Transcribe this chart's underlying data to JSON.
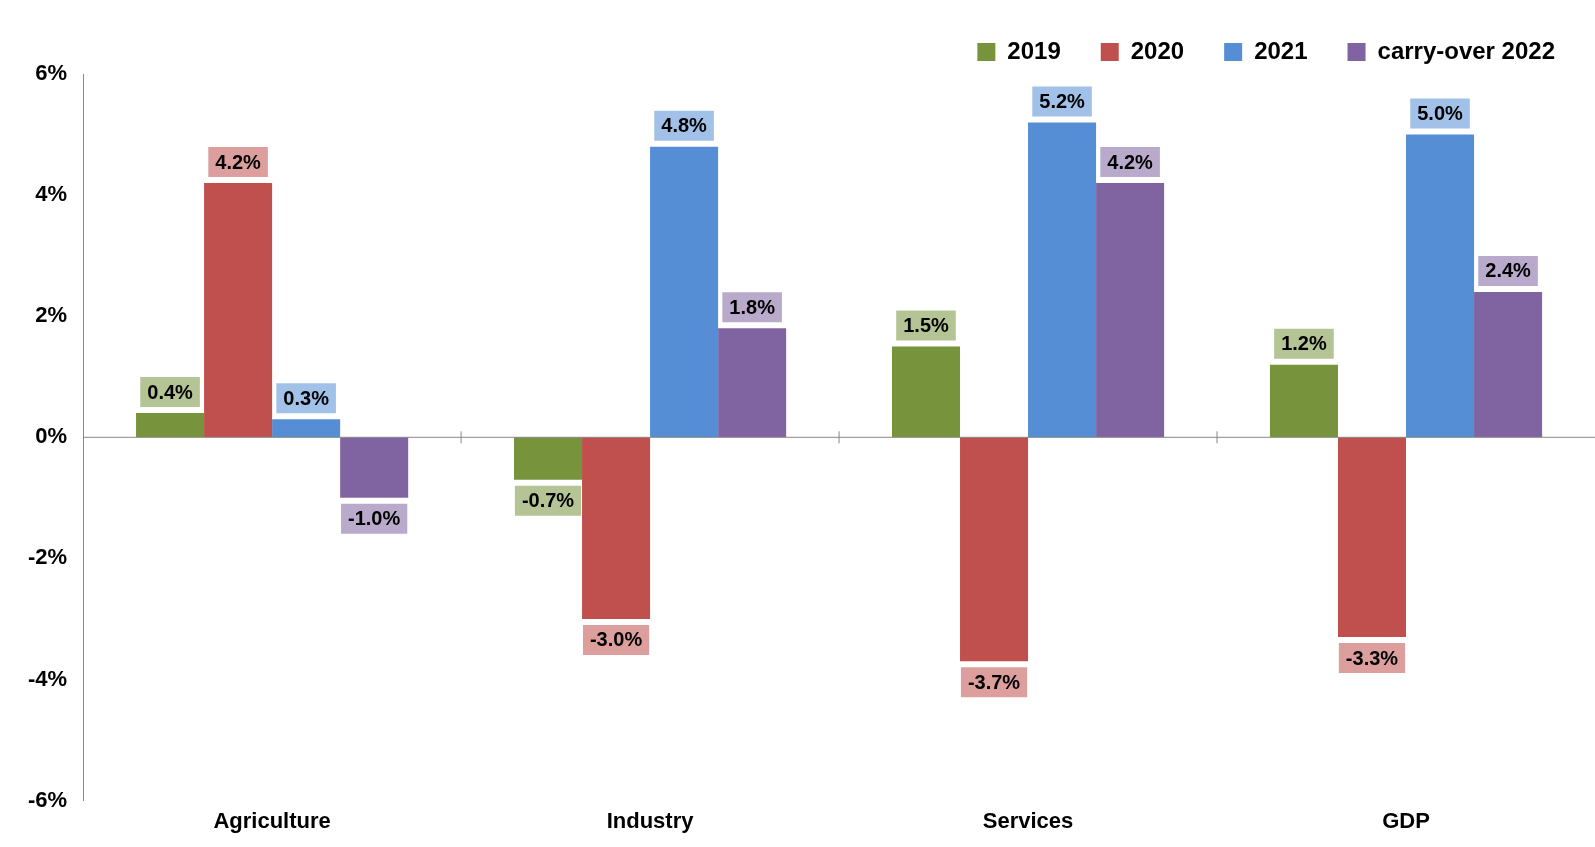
{
  "chart_data": {
    "type": "bar",
    "categories": [
      "Agriculture",
      "Industry",
      "Services",
      "GDP"
    ],
    "series": [
      {
        "name": "2019",
        "color": "#77933c",
        "values": [
          0.4,
          -0.7,
          1.5,
          1.2
        ],
        "value_labels": [
          "0.4%",
          "-0.7%",
          "1.5%",
          "1.2%"
        ]
      },
      {
        "name": "2020",
        "color": "#c0504d",
        "values": [
          4.2,
          -3.0,
          -3.7,
          -3.3
        ],
        "value_labels": [
          "4.2%",
          "-3.0%",
          "-3.7%",
          "-3.3%"
        ]
      },
      {
        "name": "2021",
        "color": "#558ed5",
        "values": [
          0.3,
          4.8,
          5.2,
          5.0
        ],
        "value_labels": [
          "0.3%",
          "4.8%",
          "5.2%",
          "5.0%"
        ]
      },
      {
        "name": "carry-over 2022",
        "color": "#8064a2",
        "values": [
          -1.0,
          1.8,
          4.2,
          2.4
        ],
        "value_labels": [
          "-1.0%",
          "1.8%",
          "4.2%",
          "2.4%"
        ]
      }
    ],
    "ylim": [
      -6,
      6
    ],
    "yticks": [
      {
        "value": -6,
        "label": "-6%"
      },
      {
        "value": -4,
        "label": "-4%"
      },
      {
        "value": -2,
        "label": "-2%"
      },
      {
        "value": 0,
        "label": "0%"
      },
      {
        "value": 2,
        "label": "2%"
      },
      {
        "value": 4,
        "label": "4%"
      },
      {
        "value": 6,
        "label": "6%"
      }
    ],
    "ref_lines": [
      {
        "axis": "y",
        "value": 0,
        "color": "#888888"
      }
    ],
    "grid": false,
    "legend": "top right"
  }
}
